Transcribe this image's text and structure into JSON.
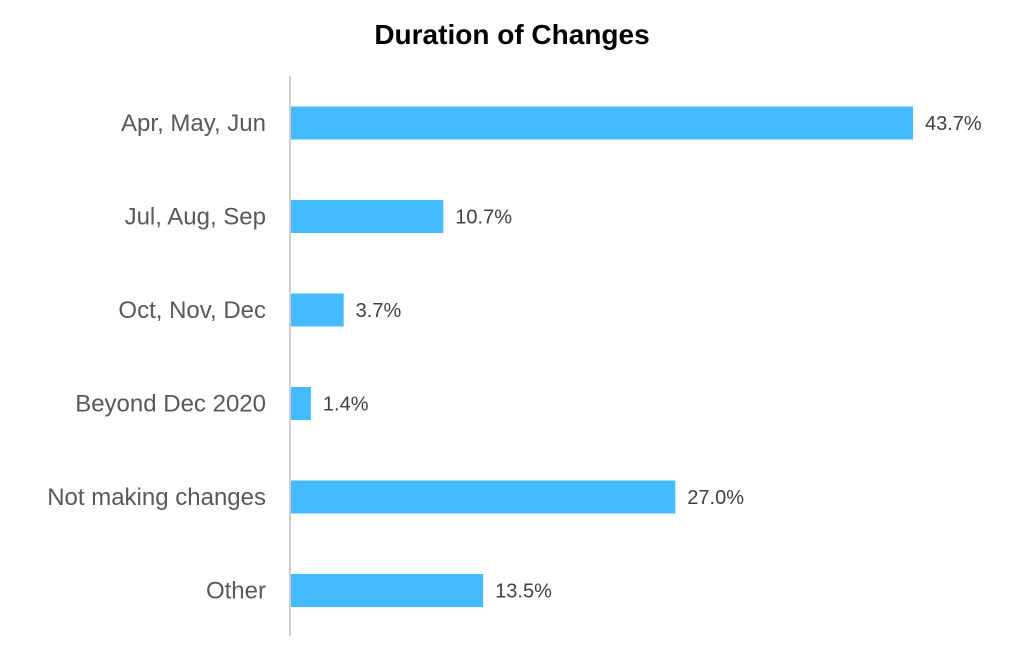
{
  "chart_data": {
    "type": "bar",
    "orientation": "horizontal",
    "title": "Duration of Changes",
    "categories": [
      "Apr, May, Jun",
      "Jul, Aug, Sep",
      "Oct, Nov, Dec",
      "Beyond Dec 2020",
      "Not making changes",
      "Other"
    ],
    "values": [
      43.7,
      10.7,
      3.7,
      1.4,
      27.0,
      13.5
    ],
    "value_labels": [
      "43.7%",
      "10.7%",
      "3.7%",
      "1.4%",
      "27.0%",
      "13.5%"
    ],
    "unit": "%",
    "xlim": [
      0,
      45
    ],
    "grid": false,
    "legend": "none",
    "bar_color": "#44BBFF",
    "axis_color": "#BFBFBF"
  }
}
